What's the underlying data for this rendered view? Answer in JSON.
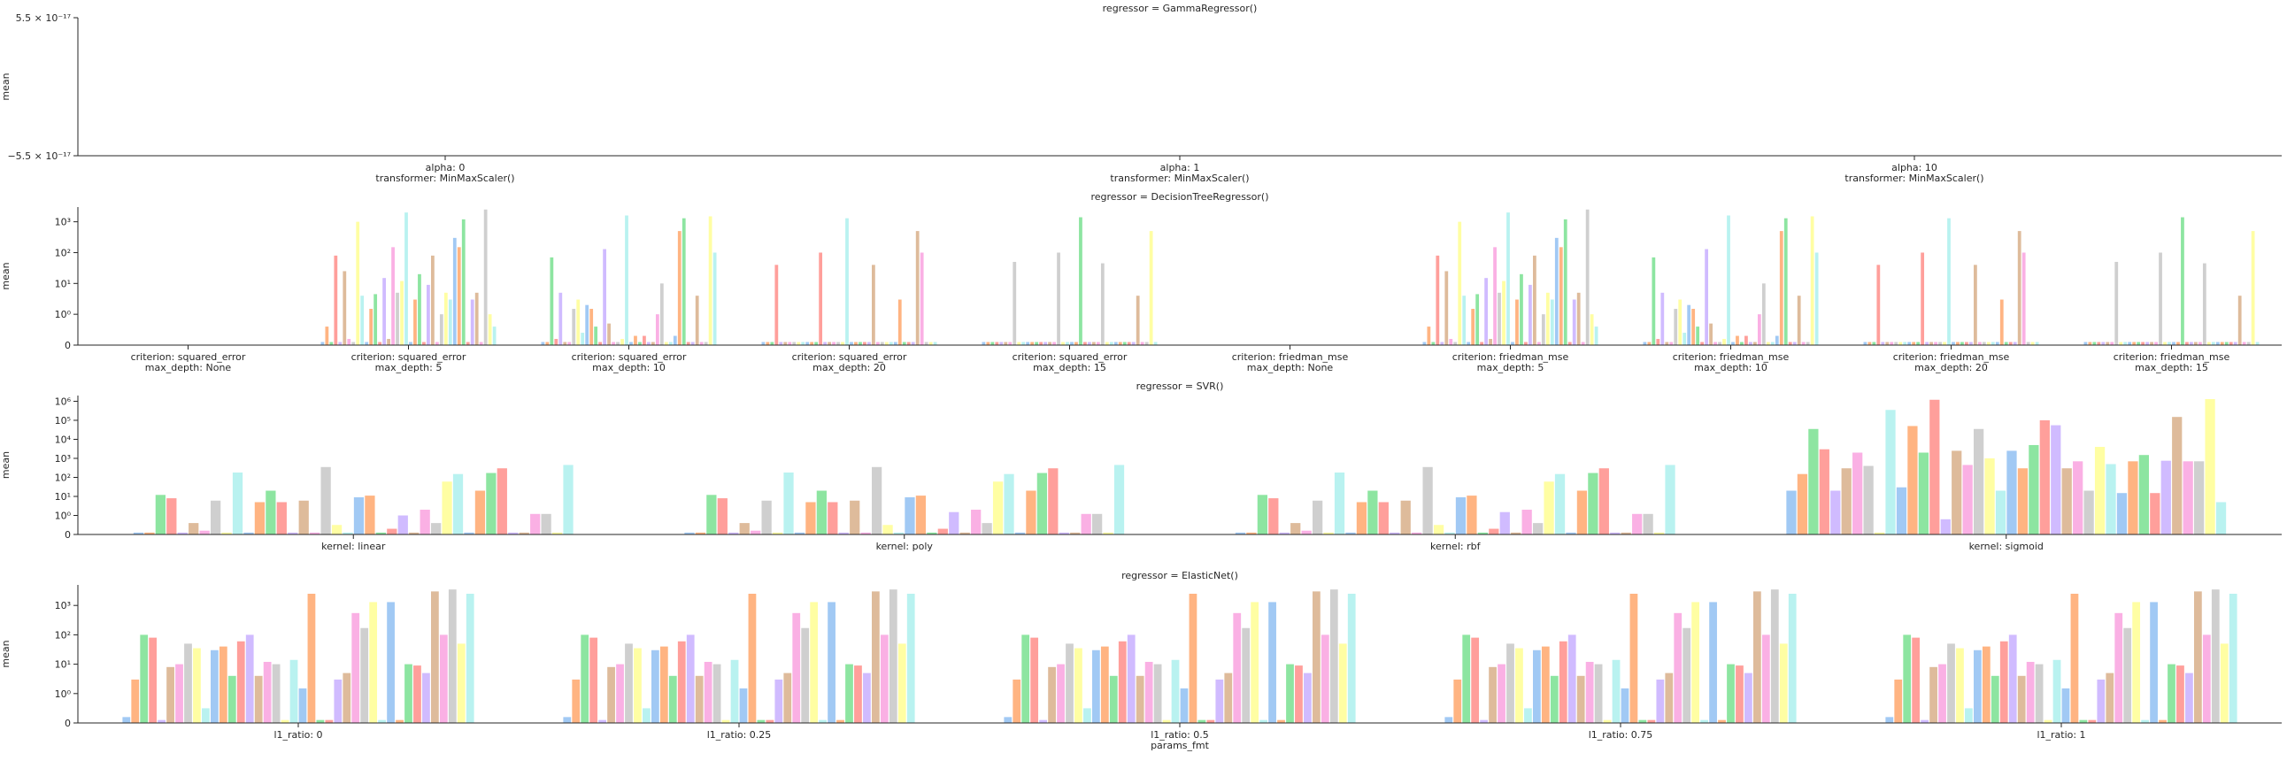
{
  "palette": [
    "#a1c9f4",
    "#ffb482",
    "#8de5a1",
    "#ff9f9b",
    "#d0bbff",
    "#debb9b",
    "#fab0e4",
    "#cfcfcf",
    "#fffea3",
    "#b9f2f0"
  ],
  "xlabel_bottom": "params_fmt",
  "chart_data": [
    {
      "type": "bar",
      "title": "regressor = GammaRegressor()",
      "ylabel": "mean",
      "yscale": "linear",
      "ylim": [
        -5.5e-17,
        5.5e-17
      ],
      "ytick_labels": [
        "5.5 × 10⁻¹⁷",
        "−5.5 × 10⁻¹⁷"
      ],
      "categories": [
        [
          "alpha: 0",
          "transformer: MinMaxScaler()"
        ],
        [
          "alpha: 1",
          "transformer: MinMaxScaler()"
        ],
        [
          "alpha: 10",
          "transformer: MinMaxScaler()"
        ]
      ],
      "bars_per_group": 0,
      "values": [
        [],
        [],
        []
      ]
    },
    {
      "type": "bar",
      "title": "regressor = DecisionTreeRegressor()",
      "ylabel": "mean",
      "yscale": "symlog",
      "ylim": [
        0,
        3000
      ],
      "yticks": [
        0,
        1,
        10,
        100,
        1000
      ],
      "ytick_labels": [
        "0",
        "10⁰",
        "10¹",
        "10²",
        "10³"
      ],
      "categories": [
        [
          "criterion: squared_error",
          "max_depth: None"
        ],
        [
          "criterion: squared_error",
          "max_depth: 5"
        ],
        [
          "criterion: squared_error",
          "max_depth: 10"
        ],
        [
          "criterion: squared_error",
          "max_depth: 20"
        ],
        [
          "criterion: squared_error",
          "max_depth: 15"
        ],
        [
          "criterion: friedman_mse",
          "max_depth: None"
        ],
        [
          "criterion: friedman_mse",
          "max_depth: 5"
        ],
        [
          "criterion: friedman_mse",
          "max_depth: 10"
        ],
        [
          "criterion: friedman_mse",
          "max_depth: 20"
        ],
        [
          "criterion: friedman_mse",
          "max_depth: 15"
        ]
      ],
      "bars_per_group": 40,
      "values": [
        [],
        [
          0.1,
          0.6,
          0.1,
          80,
          0.1,
          25,
          0.2,
          0.1,
          1000,
          4,
          0.1,
          1.5,
          4.5,
          0.1,
          15,
          0.2,
          150,
          5,
          12,
          2000,
          0.1,
          3,
          20,
          0.1,
          9,
          80,
          0.1,
          1,
          5,
          3,
          300,
          150,
          1200,
          0.1,
          3,
          5,
          0.1,
          2500,
          1,
          0.6
        ],
        [
          0.1,
          0.1,
          70,
          0.2,
          5,
          0.1,
          0.1,
          1.5,
          3,
          0.4,
          2,
          1.5,
          0.6,
          0.1,
          130,
          0.7,
          0.1,
          0.1,
          0.2,
          1600,
          0.1,
          0.3,
          0.1,
          0.3,
          0.1,
          0.1,
          1,
          10,
          0.1,
          0.1,
          0.3,
          500,
          1300,
          0.1,
          0.1,
          4,
          0.1,
          0.1,
          1500,
          100
        ],
        [
          0.1,
          0.1,
          0.1,
          40,
          0.1,
          0.1,
          0.1,
          0.1,
          0.1,
          0.1,
          0.1,
          0.1,
          0.1,
          100,
          0.1,
          0.1,
          0.1,
          0.1,
          0.1,
          1300,
          0.1,
          0.1,
          0.1,
          0.1,
          0.1,
          40,
          0.1,
          0.1,
          0.1,
          0.1,
          0.1,
          3,
          0.1,
          0.1,
          0.1,
          500,
          100,
          0.1,
          0.1,
          0.1
        ],
        [
          0.1,
          0.1,
          0.1,
          0.1,
          0.1,
          0.1,
          0.1,
          50,
          0.1,
          0.1,
          0.1,
          0.1,
          0.1,
          0.1,
          0.1,
          0.1,
          0.1,
          100,
          0.1,
          0.1,
          0.1,
          0.1,
          1400,
          0.1,
          0.1,
          0.1,
          0.1,
          45,
          0.1,
          0.1,
          0.1,
          0.1,
          0.1,
          0.1,
          0.1,
          4,
          0.1,
          0.1,
          500,
          0.1
        ],
        [],
        [
          0.1,
          0.6,
          0.1,
          80,
          0.1,
          25,
          0.2,
          0.1,
          1000,
          4,
          0.1,
          1.5,
          4.5,
          0.1,
          15,
          0.2,
          150,
          5,
          12,
          2000,
          0.1,
          3,
          20,
          0.1,
          9,
          80,
          0.1,
          1,
          5,
          3,
          300,
          150,
          1200,
          0.1,
          3,
          5,
          0.1,
          2500,
          1,
          0.6
        ],
        [
          0.1,
          0.1,
          70,
          0.2,
          5,
          0.1,
          0.1,
          1.5,
          3,
          0.4,
          2,
          1.5,
          0.6,
          0.1,
          130,
          0.7,
          0.1,
          0.1,
          0.2,
          1600,
          0.1,
          0.3,
          0.1,
          0.3,
          0.1,
          0.1,
          1,
          10,
          0.1,
          0.1,
          0.3,
          500,
          1300,
          0.1,
          0.1,
          4,
          0.1,
          0.1,
          1500,
          100
        ],
        [
          0.1,
          0.1,
          0.1,
          40,
          0.1,
          0.1,
          0.1,
          0.1,
          0.1,
          0.1,
          0.1,
          0.1,
          0.1,
          100,
          0.1,
          0.1,
          0.1,
          0.1,
          0.1,
          1300,
          0.1,
          0.1,
          0.1,
          0.1,
          0.1,
          40,
          0.1,
          0.1,
          0.1,
          0.1,
          0.1,
          3,
          0.1,
          0.1,
          0.1,
          500,
          100,
          0.1,
          0.1,
          0.1
        ],
        [
          0.1,
          0.1,
          0.1,
          0.1,
          0.1,
          0.1,
          0.1,
          50,
          0.1,
          0.1,
          0.1,
          0.1,
          0.1,
          0.1,
          0.1,
          0.1,
          0.1,
          100,
          0.1,
          0.1,
          0.1,
          0.1,
          1400,
          0.1,
          0.1,
          0.1,
          0.1,
          45,
          0.1,
          0.1,
          0.1,
          0.1,
          0.1,
          0.1,
          0.1,
          4,
          0.1,
          0.1,
          500,
          0.1
        ]
      ]
    },
    {
      "type": "bar",
      "title": "regressor = SVR()",
      "ylabel": "mean",
      "yscale": "symlog",
      "ylim": [
        0,
        2000000
      ],
      "yticks": [
        0,
        1,
        10,
        100,
        1000,
        10000,
        100000,
        1000000
      ],
      "ytick_labels": [
        "0",
        "10⁰",
        "10¹",
        "10²",
        "10³",
        "10⁴",
        "10⁵",
        "10⁶"
      ],
      "categories": [
        [
          "kernel: linear"
        ],
        [
          "kernel: poly"
        ],
        [
          "kernel: rbf"
        ],
        [
          "kernel: sigmoid"
        ]
      ],
      "bars_per_group": 40,
      "values": [
        [
          0.1,
          0.1,
          12,
          8,
          0.1,
          0.6,
          0.2,
          6,
          0.1,
          180,
          0.1,
          5,
          20,
          5,
          0.1,
          6,
          0.1,
          350,
          0.5,
          0.1,
          9,
          11,
          0.1,
          0.3,
          1,
          0.1,
          2,
          0.6,
          60,
          150,
          0.1,
          20,
          170,
          300,
          0.1,
          0.1,
          1.2,
          1.2,
          0.1,
          450
        ],
        [
          0.1,
          0.1,
          12,
          8,
          0.1,
          0.6,
          0.2,
          6,
          0.1,
          180,
          0.1,
          5,
          20,
          5,
          0.1,
          6,
          0.1,
          350,
          0.5,
          0.1,
          9,
          11,
          0.1,
          0.3,
          1.5,
          0.1,
          2,
          0.6,
          60,
          150,
          0.1,
          20,
          170,
          300,
          0.1,
          0.1,
          1.2,
          1.2,
          0.1,
          450
        ],
        [
          0.1,
          0.1,
          12,
          8,
          0.1,
          0.6,
          0.2,
          6,
          0.1,
          180,
          0.1,
          5,
          20,
          5,
          0.1,
          6,
          0.1,
          350,
          0.5,
          0.1,
          9,
          11,
          0.1,
          0.3,
          1.5,
          0.1,
          2,
          0.6,
          60,
          150,
          0.1,
          20,
          170,
          300,
          0.1,
          0.1,
          1.2,
          1.2,
          0.1,
          450
        ],
        [
          20,
          150,
          35000,
          3000,
          20,
          300,
          2000,
          400,
          0.1,
          350000,
          30,
          50000,
          2000,
          1200000,
          0.8,
          2500,
          450,
          35000,
          1000,
          20,
          2500,
          300,
          5000,
          100000,
          55000,
          300,
          700,
          20,
          4000,
          500,
          15,
          700,
          1500,
          15,
          750,
          150000,
          700,
          700,
          1300000,
          5
        ]
      ]
    },
    {
      "type": "bar",
      "title": "regressor = ElasticNet()",
      "ylabel": "mean",
      "yscale": "symlog",
      "ylim": [
        0,
        5000
      ],
      "yticks": [
        0,
        1,
        10,
        100,
        1000
      ],
      "ytick_labels": [
        "0",
        "10⁰",
        "10¹",
        "10²",
        "10³"
      ],
      "xlabel": "params_fmt",
      "categories": [
        [
          "l1_ratio: 0"
        ],
        [
          "l1_ratio: 0.25"
        ],
        [
          "l1_ratio: 0.5"
        ],
        [
          "l1_ratio: 0.75"
        ],
        [
          "l1_ratio: 1"
        ]
      ],
      "bars_per_group": 40,
      "values": [
        [
          0.2,
          3,
          100,
          80,
          0.1,
          8,
          10,
          50,
          35,
          0.5,
          30,
          40,
          4,
          60,
          100,
          4,
          12,
          10,
          0.1,
          14,
          1.5,
          2500,
          0.1,
          0.1,
          3,
          5,
          550,
          170,
          1300,
          0.1,
          1300,
          0.1,
          10,
          9,
          5,
          3000,
          100,
          3500,
          50,
          2500
        ],
        [
          0.2,
          3,
          100,
          80,
          0.1,
          8,
          10,
          50,
          35,
          0.5,
          30,
          40,
          4,
          60,
          100,
          4,
          12,
          10,
          0.1,
          14,
          1.5,
          2500,
          0.1,
          0.1,
          3,
          5,
          550,
          170,
          1300,
          0.1,
          1300,
          0.1,
          10,
          9,
          5,
          3000,
          100,
          3500,
          50,
          2500
        ],
        [
          0.2,
          3,
          100,
          80,
          0.1,
          8,
          10,
          50,
          35,
          0.5,
          30,
          40,
          4,
          60,
          100,
          4,
          12,
          10,
          0.1,
          14,
          1.5,
          2500,
          0.1,
          0.1,
          3,
          5,
          550,
          170,
          1300,
          0.1,
          1300,
          0.1,
          10,
          9,
          5,
          3000,
          100,
          3500,
          50,
          2500
        ],
        [
          0.2,
          3,
          100,
          80,
          0.1,
          8,
          10,
          50,
          35,
          0.5,
          30,
          40,
          4,
          60,
          100,
          4,
          12,
          10,
          0.1,
          14,
          1.5,
          2500,
          0.1,
          0.1,
          3,
          5,
          550,
          170,
          1300,
          0.1,
          1300,
          0.1,
          10,
          9,
          5,
          3000,
          100,
          3500,
          50,
          2500
        ],
        [
          0.2,
          3,
          100,
          80,
          0.1,
          8,
          10,
          50,
          35,
          0.5,
          30,
          40,
          4,
          60,
          100,
          4,
          12,
          10,
          0.1,
          14,
          1.5,
          2500,
          0.1,
          0.1,
          3,
          5,
          550,
          170,
          1300,
          0.1,
          1300,
          0.1,
          10,
          9,
          5,
          3000,
          100,
          3500,
          50,
          2500
        ]
      ]
    }
  ]
}
